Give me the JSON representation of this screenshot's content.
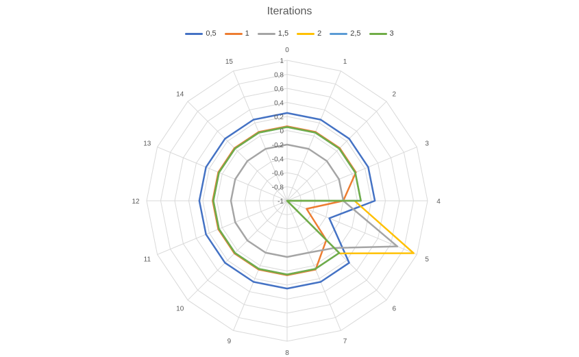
{
  "chart_data": {
    "type": "radar",
    "title": "Iterations",
    "categories": [
      "0",
      "1",
      "2",
      "3",
      "4",
      "5",
      "6",
      "7",
      "8",
      "9",
      "10",
      "11",
      "12",
      "13",
      "14",
      "15"
    ],
    "r_ticks": [
      "-1",
      "-0,8",
      "-0,6",
      "-0,4",
      "-0,2",
      "0",
      "0,2",
      "0,4",
      "0,6",
      "0,8",
      "1"
    ],
    "r_range": [
      -1,
      1
    ],
    "grid": true,
    "legend_position": "top",
    "series": [
      {
        "name": "0,5",
        "color": "#4472C4",
        "values": [
          0.25,
          0.25,
          0.25,
          0.25,
          0.25,
          -0.35,
          0.25,
          0.25,
          0.25,
          0.25,
          0.25,
          0.25,
          0.25,
          0.25,
          0.25,
          0.25
        ]
      },
      {
        "name": "1",
        "color": "#ED7D31",
        "values": [
          0.06,
          0.06,
          0.06,
          0.06,
          -0.2,
          -0.7,
          -0.21,
          0.06,
          0.06,
          0.06,
          0.06,
          0.06,
          0.06,
          0.06,
          0.06,
          0.06
        ]
      },
      {
        "name": "1,5",
        "color": "#A5A5A5",
        "values": [
          -0.2,
          -0.2,
          -0.2,
          -0.2,
          -0.2,
          0.7,
          -0.05,
          -0.2,
          -0.2,
          -0.2,
          -0.2,
          -0.2,
          -0.2,
          -0.2,
          -0.2,
          -0.2
        ]
      },
      {
        "name": "2",
        "color": "#FFC000",
        "values": [
          -1,
          -1,
          -1,
          -1,
          -0.04,
          0.95,
          0.06,
          -1,
          -1,
          -1,
          -1,
          -1,
          -1,
          -1,
          -1,
          -1
        ]
      },
      {
        "name": "2,5",
        "color": "#5B9BD5",
        "values": [
          0.05,
          0.05,
          0.05,
          0.05,
          0.05,
          -1,
          0.05,
          0.05,
          0.05,
          0.05,
          0.05,
          0.05,
          0.05,
          0.05,
          0.05,
          0.05
        ]
      },
      {
        "name": "3",
        "color": "#70AD47",
        "values": [
          0.05,
          0.05,
          0.05,
          0.05,
          0.05,
          -1,
          0.05,
          0.05,
          0.05,
          0.05,
          0.05,
          0.05,
          0.05,
          0.05,
          0.05,
          0.05
        ]
      }
    ]
  }
}
